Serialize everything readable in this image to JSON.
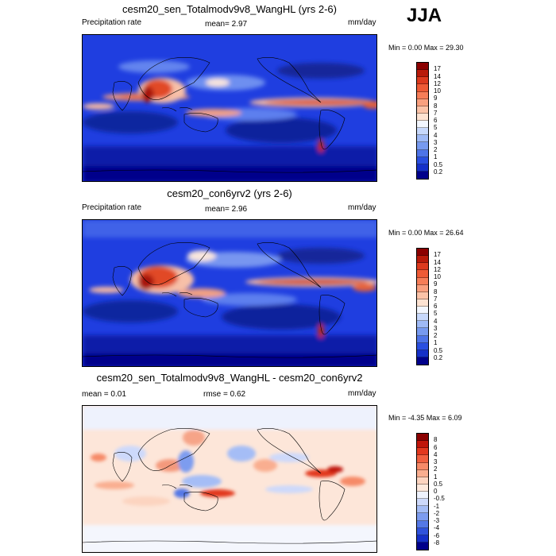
{
  "season": "JJA",
  "panels": [
    {
      "title": "cesm20_sen_Totalmodv9v8_WangHL (yrs 2-6)",
      "left_label": "Precipitation rate",
      "center_label": "mean=   2.97",
      "units": "mm/day",
      "minmax": "Min =   0.00 Max =  29.30",
      "colorbar": {
        "labels": [
          "17",
          "14",
          "12",
          "10",
          "9",
          "8",
          "7",
          "6",
          "5",
          "4",
          "3",
          "2",
          "1",
          "0.5",
          "0.2"
        ],
        "colors": [
          "#8b0000",
          "#b81a0a",
          "#dc3a1e",
          "#ee5b36",
          "#f67e58",
          "#f9a07f",
          "#fbc3a8",
          "#fde3d2",
          "#f2f6fe",
          "#c7d8fb",
          "#9fbaf6",
          "#779af0",
          "#4e74e8",
          "#2a4fe0",
          "#1530c9",
          "#00008b"
        ]
      },
      "map": "precip"
    },
    {
      "title": "cesm20_con6yrv2 (yrs 2-6)",
      "left_label": "Precipitation rate",
      "center_label": "mean=   2.96",
      "units": "mm/day",
      "minmax": "Min =   0.00 Max =  26.64",
      "colorbar": {
        "labels": [
          "17",
          "14",
          "12",
          "10",
          "9",
          "8",
          "7",
          "6",
          "5",
          "4",
          "3",
          "2",
          "1",
          "0.5",
          "0.2"
        ],
        "colors": [
          "#8b0000",
          "#b81a0a",
          "#dc3a1e",
          "#ee5b36",
          "#f67e58",
          "#f9a07f",
          "#fbc3a8",
          "#fde3d2",
          "#f2f6fe",
          "#c7d8fb",
          "#9fbaf6",
          "#779af0",
          "#4e74e8",
          "#2a4fe0",
          "#1530c9",
          "#00008b"
        ]
      },
      "map": "precip"
    },
    {
      "title": "cesm20_sen_Totalmodv9v8_WangHL - cesm20_con6yrv2",
      "left_label": "mean =   0.01",
      "center_label": "rmse =   0.62",
      "units": "mm/day",
      "minmax": "Min =  -4.35 Max =   6.09",
      "colorbar": {
        "labels": [
          "8",
          "6",
          "4",
          "3",
          "2",
          "1",
          "0.5",
          "0",
          "-0.5",
          "-1",
          "-2",
          "-3",
          "-4",
          "-6",
          "-8"
        ],
        "colors": [
          "#8b0000",
          "#c0150a",
          "#e2381e",
          "#f06040",
          "#f68a68",
          "#f9ae90",
          "#fcd4c0",
          "#fde9dd",
          "#eef2fd",
          "#cdd9fb",
          "#a5bdf6",
          "#7d9cef",
          "#5478e6",
          "#2f52dc",
          "#1530c9",
          "#00008b"
        ]
      },
      "map": "diff"
    }
  ]
}
